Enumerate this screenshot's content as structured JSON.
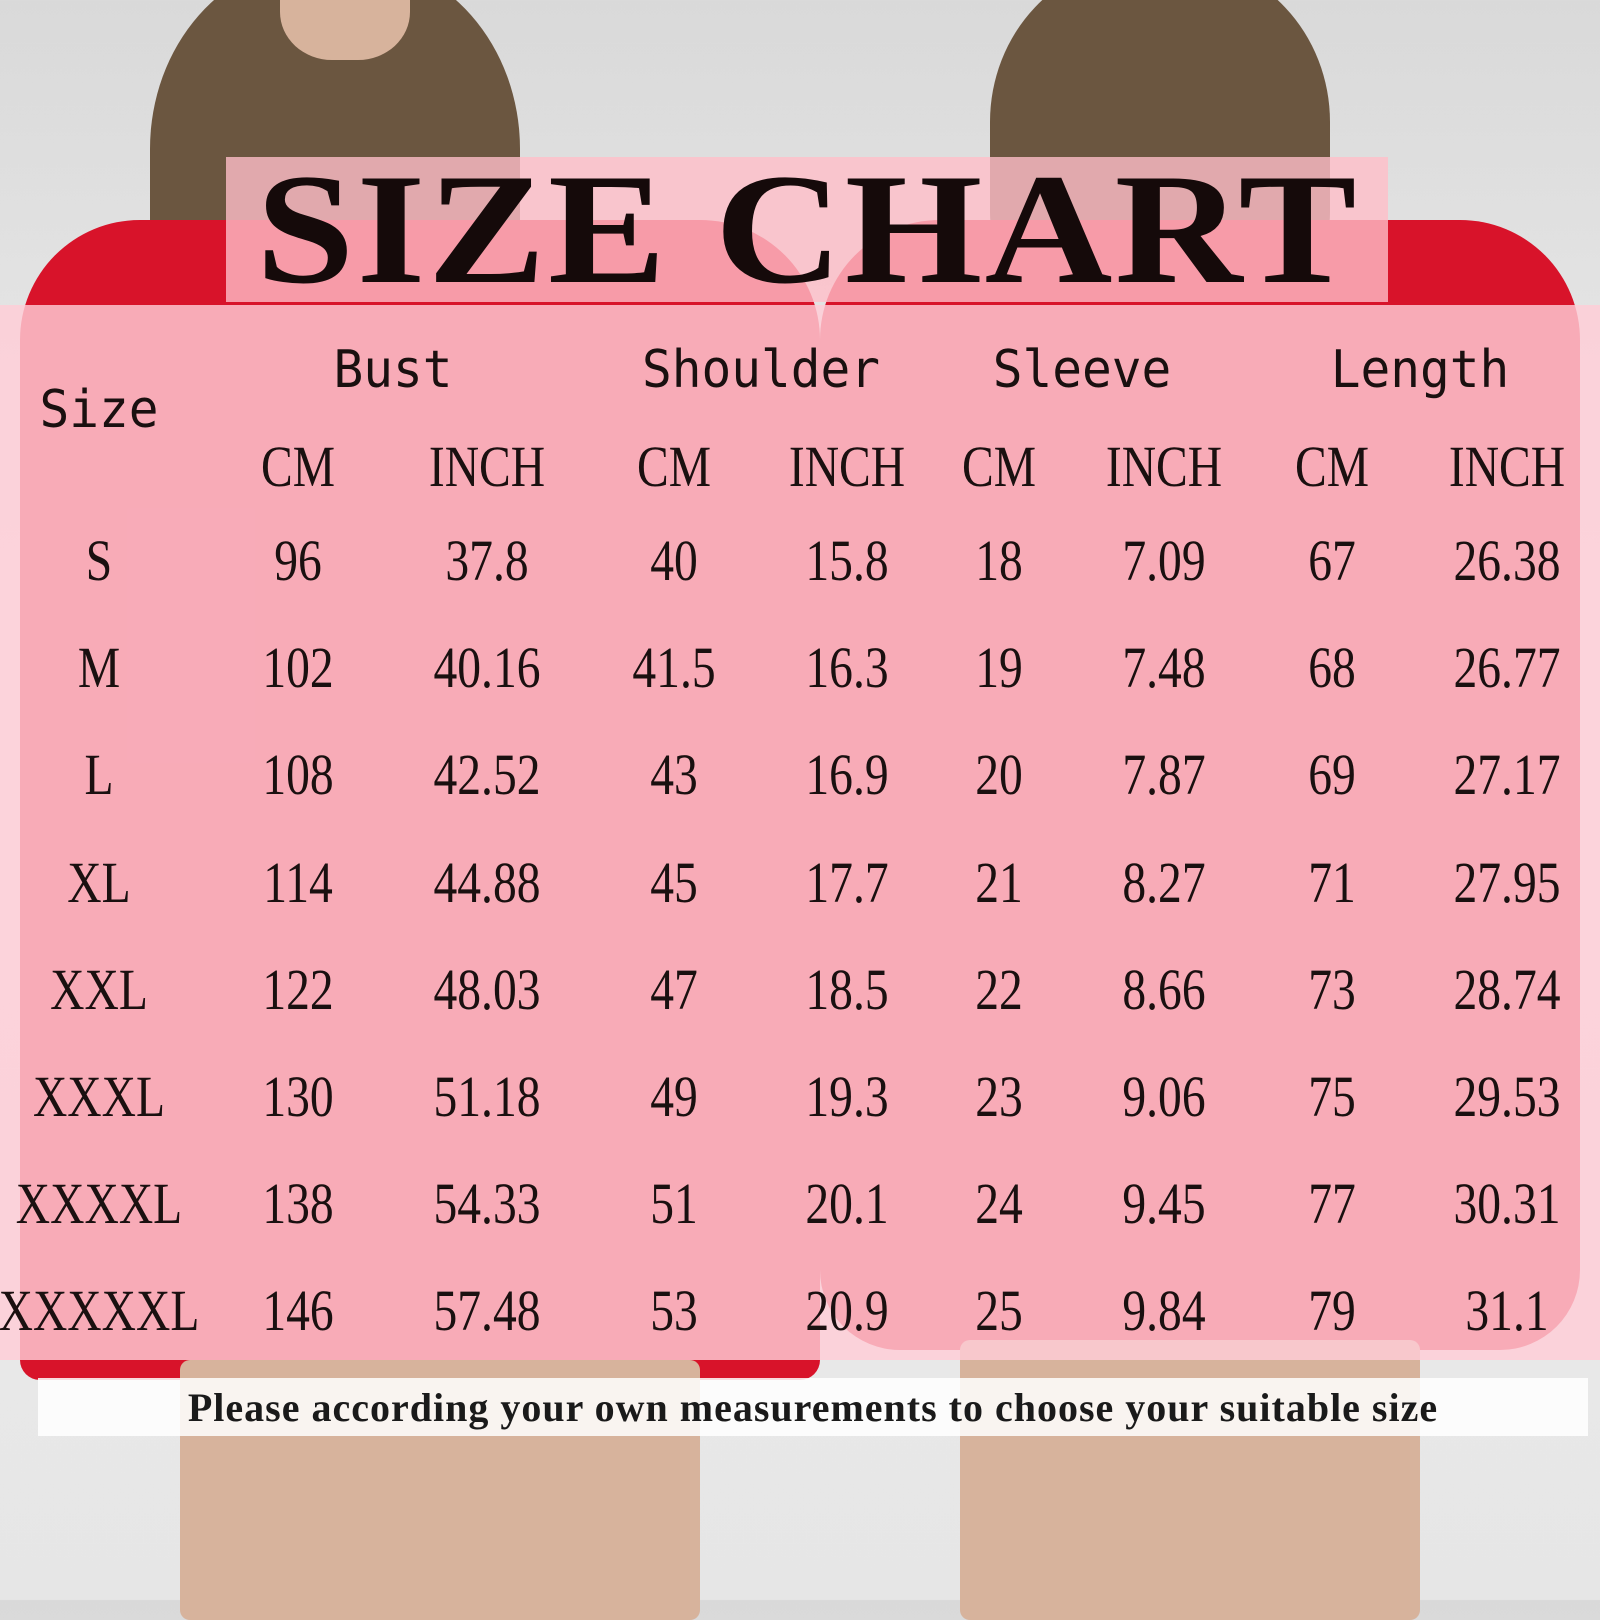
{
  "title": "SIZE CHART",
  "table": {
    "size_header": "Size",
    "groups": [
      "Bust",
      "Shoulder",
      "Sleeve",
      "Length"
    ],
    "units": [
      "CM",
      "INCH",
      "CM",
      "INCH",
      "CM",
      "INCH",
      "CM",
      "INCH"
    ],
    "rows": [
      [
        "S",
        "96",
        "37.8",
        "40",
        "15.8",
        "18",
        "7.09",
        "67",
        "26.38"
      ],
      [
        "M",
        "102",
        "40.16",
        "41.5",
        "16.3",
        "19",
        "7.48",
        "68",
        "26.77"
      ],
      [
        "L",
        "108",
        "42.52",
        "43",
        "16.9",
        "20",
        "7.87",
        "69",
        "27.17"
      ],
      [
        "XL",
        "114",
        "44.88",
        "45",
        "17.7",
        "21",
        "8.27",
        "71",
        "27.95"
      ],
      [
        "XXL",
        "122",
        "48.03",
        "47",
        "18.5",
        "22",
        "8.66",
        "73",
        "28.74"
      ],
      [
        "XXXL",
        "130",
        "51.18",
        "49",
        "19.3",
        "23",
        "9.06",
        "75",
        "29.53"
      ],
      [
        "XXXXL",
        "138",
        "54.33",
        "51",
        "20.1",
        "24",
        "9.45",
        "77",
        "30.31"
      ],
      [
        "XXXXXL",
        "146",
        "57.48",
        "53",
        "20.9",
        "25",
        "9.84",
        "79",
        "31.1"
      ]
    ]
  },
  "footer": "Please according your own measurements to choose your suitable size",
  "colors": {
    "shirt": "#d8132a",
    "overlay": "#ffcdd7",
    "text": "#1a1010"
  }
}
